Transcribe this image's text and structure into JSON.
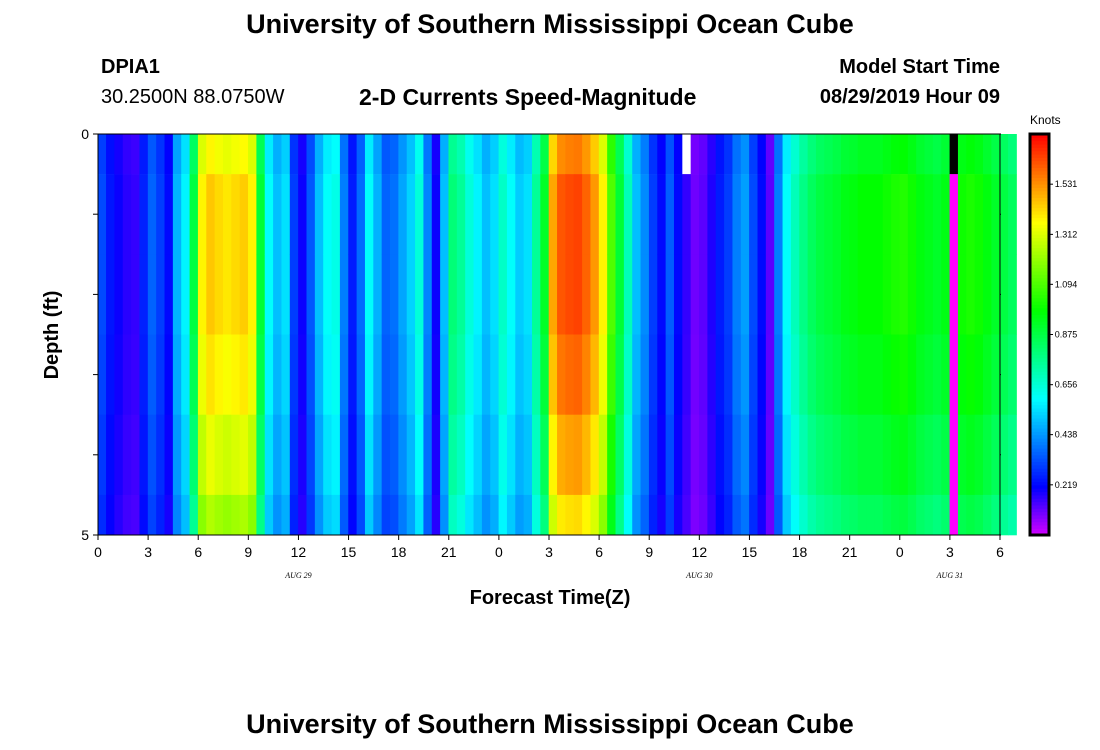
{
  "title": "University of Southern Mississippi Ocean Cube",
  "footer_title": "University of Southern Mississippi Ocean Cube",
  "station": {
    "id": "DPIA1",
    "location": "30.2500N 88.0750W"
  },
  "model": {
    "label": "Model Start Time",
    "start": "08/29/2019 Hour 09"
  },
  "chart_data": {
    "type": "heatmap",
    "title": "2-D Currents Speed-Magnitude",
    "xlabel": "Forecast Time(Z)",
    "ylabel": "Depth (ft)",
    "colorbar_label": "Knots",
    "colorbar_ticks": [
      0.219,
      0.438,
      0.656,
      0.875,
      1.094,
      1.312,
      1.531
    ],
    "colorbar_range": [
      0.0,
      1.75
    ],
    "x_tick_labels": [
      "0",
      "3",
      "6",
      "9",
      "12",
      "15",
      "18",
      "21",
      "0",
      "3",
      "6",
      "9",
      "12",
      "15",
      "18",
      "21",
      "0",
      "3",
      "6"
    ],
    "x_date_labels": [
      {
        "text": "AUG  29",
        "hour": 12
      },
      {
        "text": "AUG  30",
        "hour": 36
      },
      {
        "text": "AUG  31",
        "hour": 51
      }
    ],
    "xlim_hours": [
      0,
      54
    ],
    "y_tick_labels": [
      "0",
      "5"
    ],
    "ylim_ft": [
      0,
      5
    ],
    "depth_bins_ft": [
      0,
      0.5,
      1.5,
      2.5,
      3.5,
      4.5
    ],
    "time_step_hours": 1,
    "speed_profile_knots": [
      0.32,
      0.24,
      0.2,
      0.17,
      0.16,
      0.26,
      0.36,
      0.3,
      0.22,
      0.48,
      0.58,
      0.88,
      1.38,
      1.45,
      1.42,
      1.4,
      1.42,
      1.44,
      1.38,
      0.9,
      0.6,
      0.5,
      0.55,
      0.3,
      0.2,
      0.34,
      0.5,
      0.6,
      0.63,
      0.4,
      0.25,
      0.37,
      0.6,
      0.48,
      0.36,
      0.38,
      0.46,
      0.53,
      0.65,
      0.41,
      0.2,
      0.5,
      0.8,
      0.75,
      0.65,
      0.58,
      0.5,
      0.55,
      0.68,
      0.6,
      0.52,
      0.55,
      0.75,
      0.92,
      1.5,
      1.62,
      1.64,
      1.65,
      1.6,
      1.52,
      1.38,
      1.1,
      0.9,
      0.7,
      0.5,
      0.42,
      0.3,
      0.22,
      0.35,
      0.22,
      0.16,
      0.1,
      0.12,
      0.18,
      0.25,
      0.3,
      0.4,
      0.45,
      0.32,
      0.22,
      0.12,
      0.4,
      0.6,
      0.7,
      0.78,
      0.84,
      0.88,
      0.9,
      0.92,
      0.95,
      0.96,
      0.98,
      0.98,
      0.98,
      1.0,
      1.02,
      1.03,
      1.0,
      0.96,
      0.94,
      0.92,
      0.95,
      0.98,
      1.0,
      1.02,
      1.0,
      0.96,
      0.92,
      0.88,
      0.84
    ],
    "depth_factors": [
      0.95,
      1.0,
      1.0,
      0.97,
      0.92,
      0.86
    ],
    "hot_columns": [
      {
        "hour": 35,
        "depth_bin": 0
      }
    ],
    "black_columns": [
      {
        "hour": 51,
        "depth_bin": 0
      }
    ],
    "magenta_columns": [
      {
        "hour": 51
      }
    ]
  }
}
